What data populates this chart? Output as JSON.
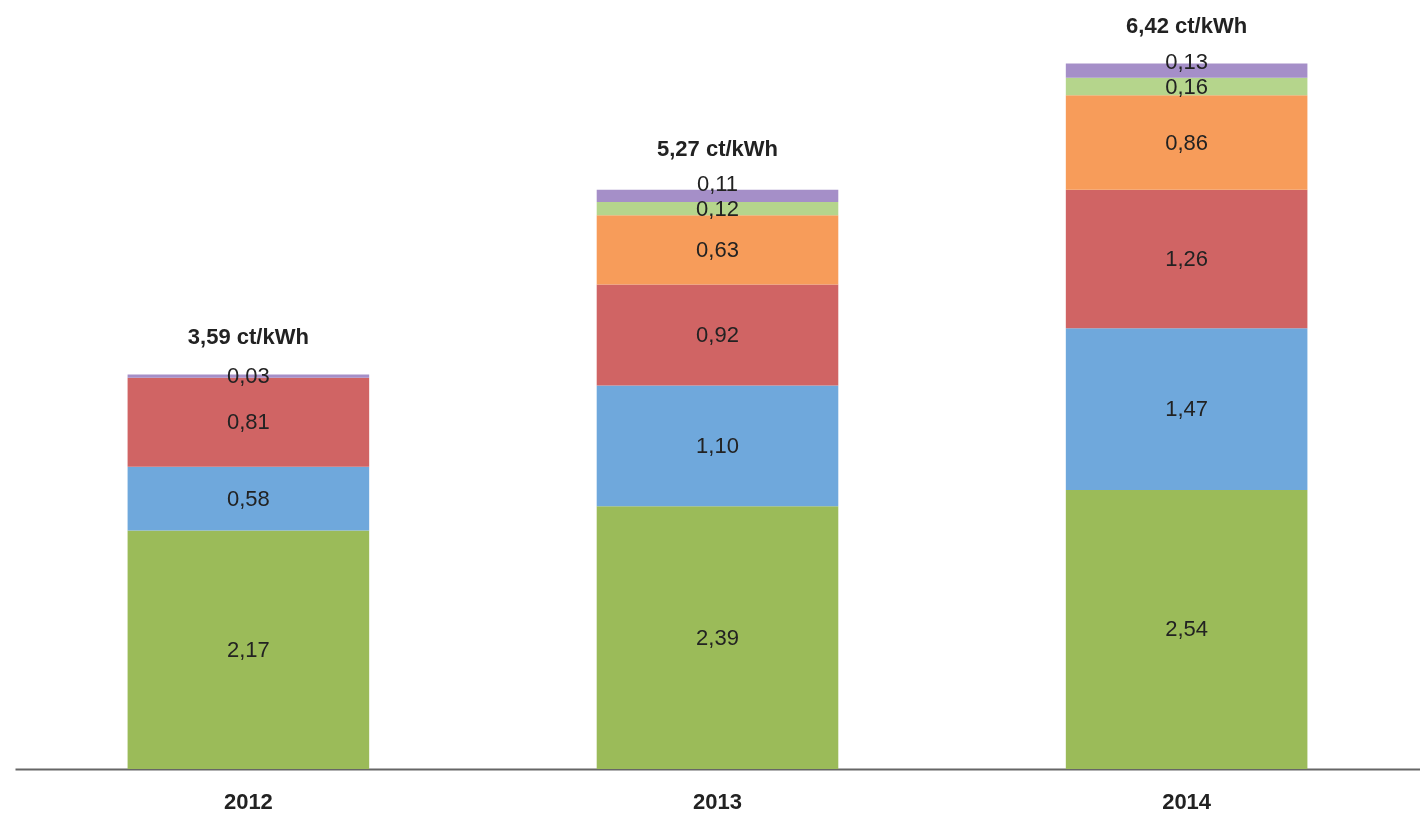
{
  "chart_data": {
    "type": "bar",
    "stacked": true,
    "categories": [
      "2012",
      "2013",
      "2014"
    ],
    "series": [
      {
        "color": "#9bbb59",
        "values": [
          2.17,
          2.39,
          2.54
        ],
        "value_labels": [
          "2,17",
          "2,39",
          "2,54"
        ]
      },
      {
        "color": "#6fa8dc",
        "values": [
          0.58,
          1.1,
          1.47
        ],
        "value_labels": [
          "0,58",
          "1,10",
          "1,47"
        ]
      },
      {
        "color": "#d06464",
        "values": [
          0.81,
          0.92,
          1.26
        ],
        "value_labels": [
          "0,81",
          "0,92",
          "1,26"
        ]
      },
      {
        "color": "#f79c5a",
        "values": [
          null,
          0.63,
          0.86
        ],
        "value_labels": [
          null,
          "0,63",
          "0,86"
        ]
      },
      {
        "color": "#b5d58c",
        "values": [
          null,
          0.12,
          0.16
        ],
        "value_labels": [
          null,
          "0,12",
          "0,16"
        ]
      },
      {
        "color": "#a58fc8",
        "values": [
          0.03,
          0.11,
          0.13
        ],
        "value_labels": [
          "0,03",
          "0,11",
          "0,13"
        ]
      }
    ],
    "totals": [
      "3,59 ct/kWh",
      "5,27 ct/kWh",
      "6,42 ct/kWh"
    ],
    "legend": false,
    "grid": false
  }
}
